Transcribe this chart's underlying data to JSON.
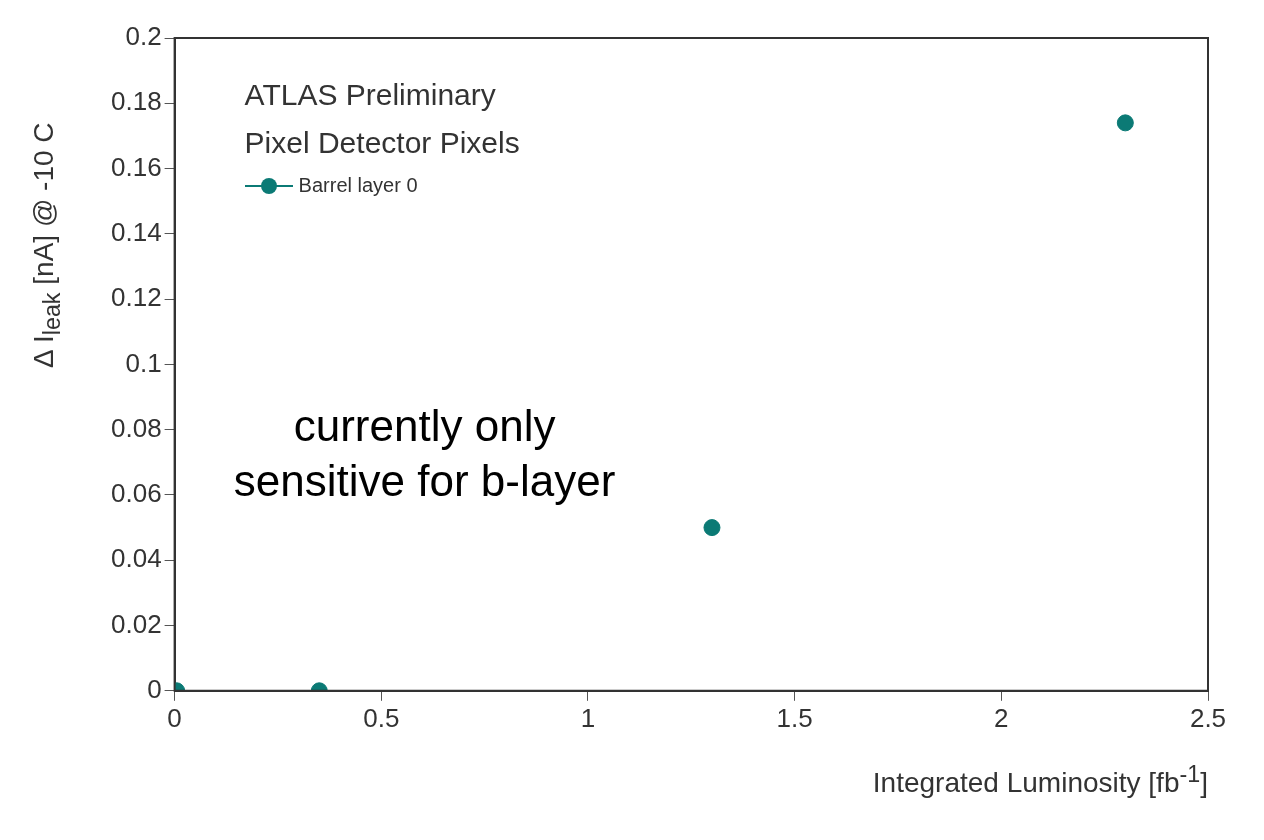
{
  "chart_data": {
    "type": "scatter",
    "xlabel": "Integrated Luminosity [fb$^{-1}$]",
    "ylabel": "Δ I$_{leak}$ [nA] @ -10 C",
    "annotations": [
      "ATLAS Preliminary",
      "Pixel Detector Pixels",
      "currently only sensitive for b-layer"
    ],
    "series": [
      {
        "name": "Barrel layer 0",
        "color": "#0b7a75",
        "x": [
          0.005,
          0.35,
          1.3,
          2.3
        ],
        "values": [
          0,
          0,
          0.05,
          0.174
        ]
      }
    ],
    "xlim": [
      0,
      2.5
    ],
    "xticks": [
      0,
      0.5,
      1,
      1.5,
      2,
      2.5
    ],
    "ylim": [
      0,
      0.2
    ],
    "yticks": [
      0,
      0.02,
      0.04,
      0.06,
      0.08,
      0.1,
      0.12,
      0.14,
      0.16,
      0.18,
      0.2
    ],
    "grid": false,
    "legend": "top left",
    "marker": "circle"
  }
}
